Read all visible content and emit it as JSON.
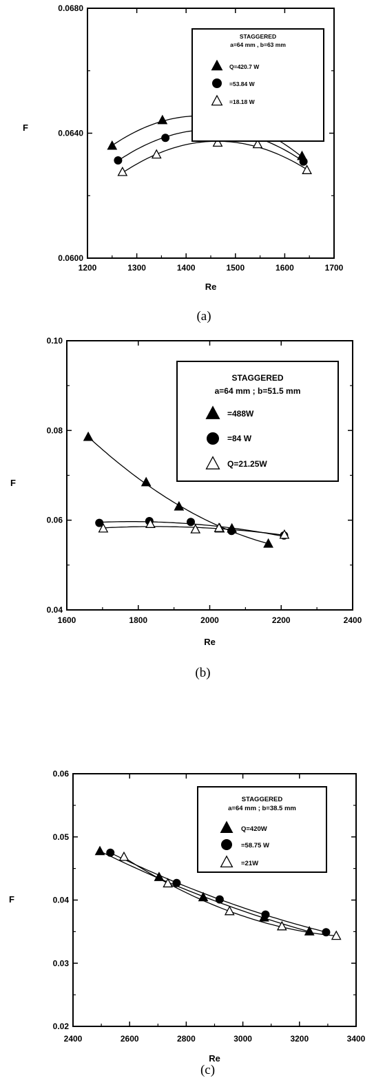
{
  "chart_data": [
    {
      "type": "scatter",
      "panel": "(a)",
      "xlabel": "Re",
      "ylabel": "F",
      "xlim": [
        1200,
        1700
      ],
      "ylim": [
        0.06,
        0.068
      ],
      "xticks": [
        "1200",
        "1300",
        "1400",
        "1500",
        "1600",
        "1700"
      ],
      "yticks": [
        "0.0600",
        "0.0640",
        "0.0680"
      ],
      "legend_title": "STAGGERED",
      "legend_subtitle": "a=64 mm , b=63 mm",
      "legend_placement": "top-right",
      "series": [
        {
          "name": "Q=420.7 W",
          "marker": "filled-triangle",
          "points": [
            [
              1250,
              0.06359
            ],
            [
              1352,
              0.06441
            ],
            [
              1434,
              0.06457
            ],
            [
              1538,
              0.06413
            ],
            [
              1635,
              0.06326
            ]
          ]
        },
        {
          "name": "=53.84 W",
          "marker": "filled-circle",
          "points": [
            [
              1262,
              0.06313
            ],
            [
              1358,
              0.06385
            ],
            [
              1450,
              0.06413
            ],
            [
              1535,
              0.06391
            ],
            [
              1638,
              0.06309
            ]
          ]
        },
        {
          "name": "=18.18 W",
          "marker": "open-triangle",
          "points": [
            [
              1271,
              0.06275
            ],
            [
              1340,
              0.06331
            ],
            [
              1464,
              0.06369
            ],
            [
              1545,
              0.06364
            ],
            [
              1645,
              0.06281
            ]
          ]
        }
      ]
    },
    {
      "type": "scatter",
      "panel": "(b)",
      "xlabel": "Re",
      "ylabel": "F",
      "xlim": [
        1600,
        2400
      ],
      "ylim": [
        0.04,
        0.1
      ],
      "xticks": [
        "1600",
        "1800",
        "2000",
        "2200",
        "2400"
      ],
      "yticks": [
        "0.04",
        "0.06",
        "0.08",
        "0.10"
      ],
      "legend_title": "STAGGERED",
      "legend_subtitle": "a=64 mm ; b=51.5 mm",
      "legend_placement": "top-right",
      "series": [
        {
          "name": "=488W",
          "marker": "filled-triangle",
          "points": [
            [
              1660,
              0.0785
            ],
            [
              1822,
              0.0684
            ],
            [
              1914,
              0.063
            ],
            [
              2028,
              0.0581
            ],
            [
              2062,
              0.0581
            ],
            [
              2164,
              0.0547
            ]
          ]
        },
        {
          "name": "=84 W",
          "marker": "filled-circle",
          "points": [
            [
              1691,
              0.0594
            ],
            [
              1831,
              0.0598
            ],
            [
              1947,
              0.0596
            ],
            [
              2061,
              0.0576
            ],
            [
              2208,
              0.0566
            ]
          ]
        },
        {
          "name": "Q=21.25W",
          "marker": "open-triangle",
          "points": [
            [
              1702,
              0.0581
            ],
            [
              1834,
              0.0591
            ],
            [
              1960,
              0.0579
            ],
            [
              2026,
              0.0582
            ],
            [
              2209,
              0.0567
            ]
          ]
        }
      ]
    },
    {
      "type": "scatter",
      "panel": "(c)",
      "xlabel": "Re",
      "ylabel": "F",
      "xlim": [
        2400,
        3400
      ],
      "ylim": [
        0.02,
        0.06
      ],
      "xticks": [
        "2400",
        "2600",
        "2800",
        "3000",
        "3200",
        "3400"
      ],
      "yticks": [
        "0.02",
        "0.03",
        "0.04",
        "0.05",
        "0.06"
      ],
      "legend_title": "STAGGERED",
      "legend_subtitle": "a=64 mm ; b=38.5 mm",
      "legend_placement": "top-right",
      "series": [
        {
          "name": "Q=420W",
          "marker": "filled-triangle",
          "points": [
            [
              2495,
              0.0477
            ],
            [
              2704,
              0.0436
            ],
            [
              2860,
              0.0404
            ],
            [
              3075,
              0.0372
            ],
            [
              3235,
              0.035
            ]
          ]
        },
        {
          "name": "=58.75 W",
          "marker": "filled-circle",
          "points": [
            [
              2532,
              0.0475
            ],
            [
              2766,
              0.0427
            ],
            [
              2918,
              0.0401
            ],
            [
              3080,
              0.0377
            ],
            [
              3294,
              0.0349
            ]
          ]
        },
        {
          "name": "=21W",
          "marker": "open-triangle",
          "points": [
            [
              2580,
              0.0468
            ],
            [
              2735,
              0.0426
            ],
            [
              2953,
              0.0382
            ],
            [
              3138,
              0.0358
            ],
            [
              3330,
              0.0343
            ]
          ]
        }
      ]
    }
  ]
}
